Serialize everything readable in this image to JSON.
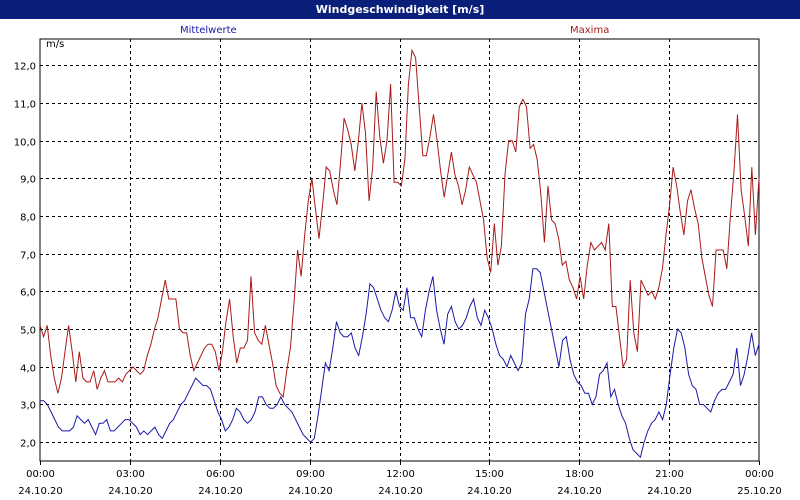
{
  "window": {
    "title": "Windgeschwindigkeit [m/s]"
  },
  "chart_data": {
    "type": "line",
    "title": "Windgeschwindigkeit [m/s]",
    "ylabel": "m/s",
    "ylim": [
      1.5,
      12.7
    ],
    "yticks": [
      "2,0",
      "3,0",
      "4,0",
      "5,0",
      "6,0",
      "7,0",
      "8,0",
      "9,0",
      "10,0",
      "11,0",
      "12,0"
    ],
    "xlim": [
      0,
      24
    ],
    "xticks": [
      {
        "time": "00:00",
        "date": "24.10.20"
      },
      {
        "time": "03:00",
        "date": "24.10.20"
      },
      {
        "time": "06:00",
        "date": "24.10.20"
      },
      {
        "time": "09:00",
        "date": "24.10.20"
      },
      {
        "time": "12:00",
        "date": "24.10.20"
      },
      {
        "time": "15:00",
        "date": "24.10.20"
      },
      {
        "time": "18:00",
        "date": "24.10.20"
      },
      {
        "time": "21:00",
        "date": "24.10.20"
      },
      {
        "time": "00:00",
        "date": "25.10.20"
      }
    ],
    "grid": true,
    "series": [
      {
        "name": "Mittelwerte",
        "color": "#1a1aa8",
        "values": [
          3.1,
          3.1,
          3.0,
          2.8,
          2.6,
          2.4,
          2.3,
          2.3,
          2.3,
          2.4,
          2.7,
          2.6,
          2.5,
          2.6,
          2.4,
          2.2,
          2.5,
          2.5,
          2.6,
          2.3,
          2.3,
          2.4,
          2.5,
          2.6,
          2.6,
          2.5,
          2.4,
          2.2,
          2.3,
          2.2,
          2.3,
          2.4,
          2.2,
          2.1,
          2.3,
          2.5,
          2.6,
          2.8,
          3.0,
          3.1,
          3.3,
          3.5,
          3.7,
          3.6,
          3.5,
          3.5,
          3.4,
          3.1,
          2.8,
          2.6,
          2.3,
          2.4,
          2.6,
          2.9,
          2.8,
          2.6,
          2.5,
          2.6,
          2.8,
          3.2,
          3.2,
          3.0,
          2.9,
          2.9,
          3.0,
          3.2,
          3.0,
          2.9,
          2.8,
          2.6,
          2.4,
          2.2,
          2.1,
          2.0,
          2.1,
          2.7,
          3.4,
          4.1,
          3.9,
          4.5,
          5.2,
          4.9,
          4.8,
          4.8,
          4.9,
          4.5,
          4.3,
          4.8,
          5.4,
          6.2,
          6.1,
          5.8,
          5.5,
          5.3,
          5.2,
          5.5,
          6.0,
          5.6,
          5.5,
          6.1,
          5.3,
          5.3,
          5.0,
          4.8,
          5.5,
          6.0,
          6.4,
          5.5,
          5.0,
          4.6,
          5.4,
          5.6,
          5.2,
          5.0,
          5.1,
          5.3,
          5.6,
          5.8,
          5.3,
          5.1,
          5.5,
          5.3,
          5.0,
          4.6,
          4.3,
          4.2,
          4.0,
          4.3,
          4.1,
          3.9,
          4.1,
          5.4,
          5.8,
          6.6,
          6.6,
          6.5,
          6.0,
          5.5,
          5.0,
          4.5,
          4.0,
          4.7,
          4.8,
          4.2,
          3.8,
          3.6,
          3.5,
          3.3,
          3.3,
          3.0,
          3.2,
          3.8,
          3.9,
          4.1,
          3.2,
          3.4,
          3.0,
          2.7,
          2.5,
          2.1,
          1.8,
          1.7,
          1.6,
          2.0,
          2.3,
          2.5,
          2.6,
          2.8,
          2.6,
          3.0,
          3.8,
          4.5,
          5.0,
          4.9,
          4.5,
          3.8,
          3.5,
          3.4,
          3.0,
          3.0,
          2.9,
          2.8,
          3.1,
          3.3,
          3.4,
          3.4,
          3.6,
          3.8,
          4.5,
          3.5,
          3.8,
          4.3,
          4.9,
          4.3,
          4.6
        ]
      },
      {
        "name": "Maxima",
        "color": "#aa1a1a",
        "values": [
          5.1,
          4.8,
          5.1,
          4.3,
          3.7,
          3.3,
          3.7,
          4.4,
          5.1,
          4.4,
          3.6,
          4.4,
          3.7,
          3.6,
          3.6,
          3.9,
          3.4,
          3.7,
          3.9,
          3.6,
          3.6,
          3.6,
          3.7,
          3.6,
          3.8,
          3.9,
          4.0,
          3.9,
          3.8,
          3.9,
          4.3,
          4.6,
          5.0,
          5.3,
          5.8,
          6.3,
          5.8,
          5.8,
          5.8,
          5.0,
          4.9,
          4.9,
          4.3,
          3.9,
          4.1,
          4.3,
          4.5,
          4.6,
          4.6,
          4.4,
          3.9,
          4.4,
          5.2,
          5.8,
          4.8,
          4.1,
          4.5,
          4.5,
          4.7,
          6.4,
          4.9,
          4.7,
          4.6,
          5.1,
          4.6,
          4.1,
          3.5,
          3.3,
          3.2,
          3.9,
          4.5,
          5.7,
          7.1,
          6.4,
          7.5,
          8.4,
          9.0,
          8.2,
          7.4,
          8.3,
          9.3,
          9.2,
          8.7,
          8.3,
          9.4,
          10.6,
          10.3,
          9.9,
          9.2,
          10.0,
          11.0,
          10.2,
          8.4,
          9.3,
          11.3,
          10.1,
          9.4,
          10.0,
          11.5,
          8.9,
          8.9,
          8.8,
          9.5,
          11.5,
          12.4,
          12.2,
          10.9,
          9.6,
          9.6,
          10.1,
          10.7,
          10.0,
          9.2,
          8.5,
          9.1,
          9.7,
          9.1,
          8.8,
          8.3,
          8.7,
          9.3,
          9.1,
          8.9,
          8.4,
          7.9,
          6.9,
          6.5,
          7.8,
          6.7,
          7.2,
          9.1,
          10.0,
          10.0,
          9.7,
          10.9,
          11.1,
          10.9,
          9.8,
          9.9,
          9.5,
          8.6,
          7.3,
          8.8,
          7.9,
          7.8,
          7.4,
          6.7,
          6.8,
          6.3,
          6.1,
          5.8,
          6.4,
          5.8,
          6.7,
          7.3,
          7.1,
          7.2,
          7.3,
          7.1,
          7.8,
          5.6,
          5.6,
          4.8,
          4.0,
          4.2,
          6.3,
          4.9,
          4.4,
          6.3,
          6.1,
          5.9,
          6.0,
          5.8,
          6.1,
          6.6,
          7.5,
          8.3,
          9.3,
          8.8,
          8.1,
          7.5,
          8.4,
          8.7,
          8.2,
          7.8,
          6.9,
          6.4,
          5.9,
          5.6,
          7.1,
          7.1,
          7.1,
          6.6,
          8.0,
          9.2,
          10.7,
          8.7,
          8.0,
          7.2,
          9.3,
          7.5,
          9.0
        ]
      }
    ]
  }
}
